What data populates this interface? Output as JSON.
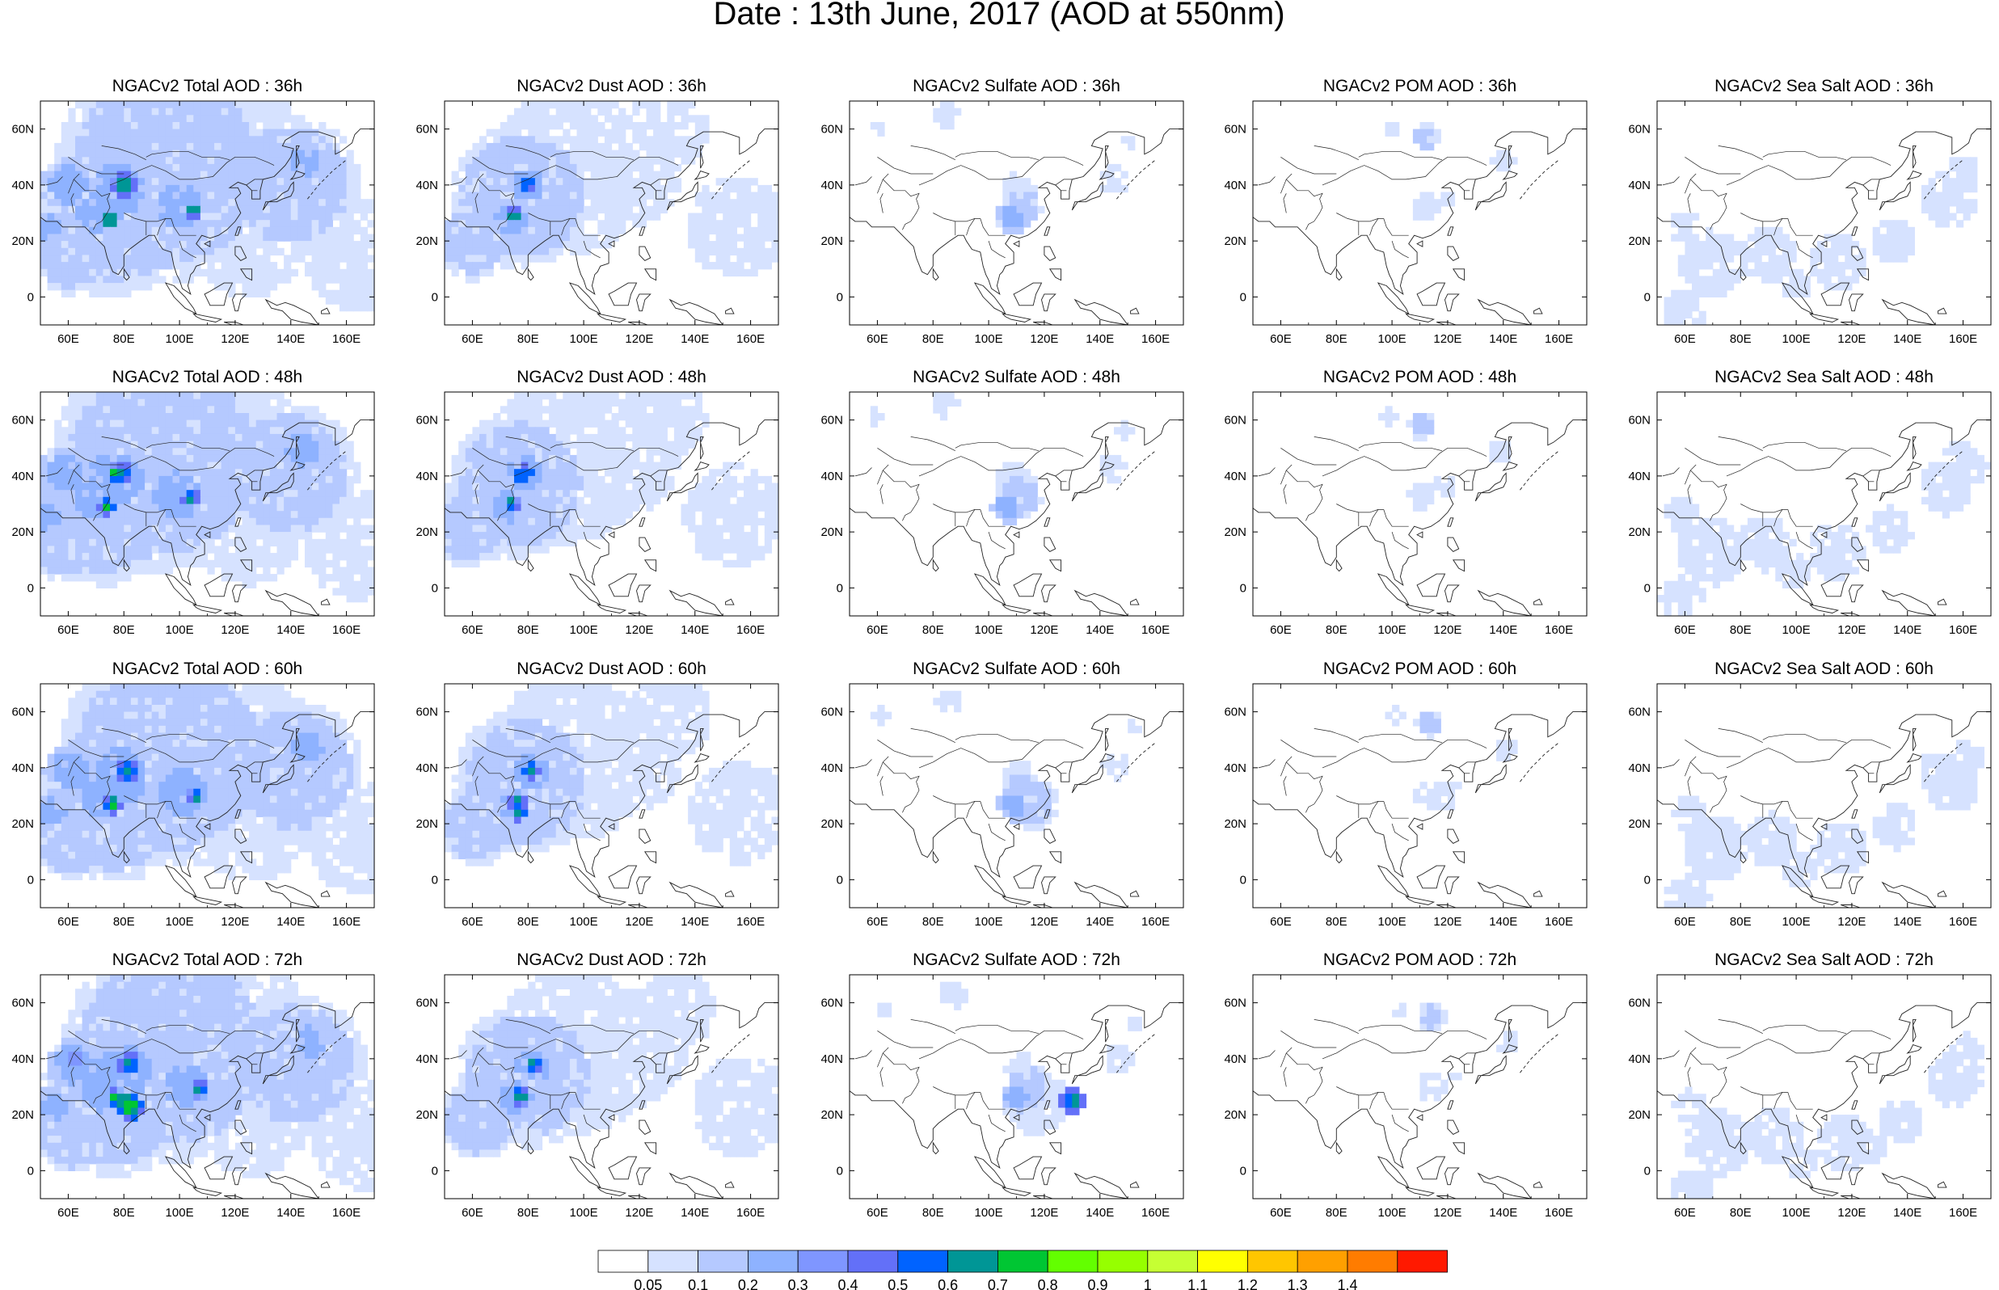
{
  "title": "Date : 13th June, 2017 (AOD at 550nm)",
  "x_ticks": [
    "60E",
    "80E",
    "100E",
    "120E",
    "140E",
    "160E"
  ],
  "x_tick_values": [
    60,
    80,
    100,
    120,
    140,
    160
  ],
  "y_ticks": [
    "60N",
    "40N",
    "20N",
    "0"
  ],
  "y_tick_values": [
    60,
    40,
    20,
    0
  ],
  "map_extent": {
    "lon": [
      50,
      170
    ],
    "lat": [
      -10,
      70
    ]
  },
  "panels": [
    {
      "row": 0,
      "col": 0,
      "title": "NGACv2 Total AOD : 36h"
    },
    {
      "row": 0,
      "col": 1,
      "title": "NGACv2 Dust AOD : 36h"
    },
    {
      "row": 0,
      "col": 2,
      "title": "NGACv2 Sulfate AOD : 36h"
    },
    {
      "row": 0,
      "col": 3,
      "title": "NGACv2 POM AOD : 36h"
    },
    {
      "row": 0,
      "col": 4,
      "title": "NGACv2 Sea Salt AOD : 36h"
    },
    {
      "row": 1,
      "col": 0,
      "title": "NGACv2 Total AOD : 48h"
    },
    {
      "row": 1,
      "col": 1,
      "title": "NGACv2 Dust AOD : 48h"
    },
    {
      "row": 1,
      "col": 2,
      "title": "NGACv2 Sulfate AOD : 48h"
    },
    {
      "row": 1,
      "col": 3,
      "title": "NGACv2 POM AOD : 48h"
    },
    {
      "row": 1,
      "col": 4,
      "title": "NGACv2 Sea Salt AOD : 48h"
    },
    {
      "row": 2,
      "col": 0,
      "title": "NGACv2 Total AOD : 60h"
    },
    {
      "row": 2,
      "col": 1,
      "title": "NGACv2 Dust AOD : 60h"
    },
    {
      "row": 2,
      "col": 2,
      "title": "NGACv2 Sulfate AOD : 60h"
    },
    {
      "row": 2,
      "col": 3,
      "title": "NGACv2 POM AOD : 60h"
    },
    {
      "row": 2,
      "col": 4,
      "title": "NGACv2 Sea Salt AOD : 60h"
    },
    {
      "row": 3,
      "col": 0,
      "title": "NGACv2 Total AOD : 72h"
    },
    {
      "row": 3,
      "col": 1,
      "title": "NGACv2 Dust AOD : 72h"
    },
    {
      "row": 3,
      "col": 2,
      "title": "NGACv2 Sulfate AOD : 72h"
    },
    {
      "row": 3,
      "col": 3,
      "title": "NGACv2 POM AOD : 72h"
    },
    {
      "row": 3,
      "col": 4,
      "title": "NGACv2 Sea Salt  AOD : 72h"
    }
  ],
  "colorbar": {
    "labels": [
      "0.05",
      "0.1",
      "0.2",
      "0.3",
      "0.4",
      "0.5",
      "0.6",
      "0.7",
      "0.8",
      "0.9",
      "1",
      "1.1",
      "1.2",
      "1.3",
      "1.4"
    ],
    "colors": [
      "#ffffff",
      "#d6e2ff",
      "#b5c9ff",
      "#8eb2ff",
      "#7f96ff",
      "#6370f8",
      "#0063ff",
      "#009696",
      "#00c633",
      "#63ff00",
      "#96ff00",
      "#c6ff33",
      "#ffff00",
      "#ffc600",
      "#ffa000",
      "#ff7c00",
      "#ff1900"
    ]
  }
}
